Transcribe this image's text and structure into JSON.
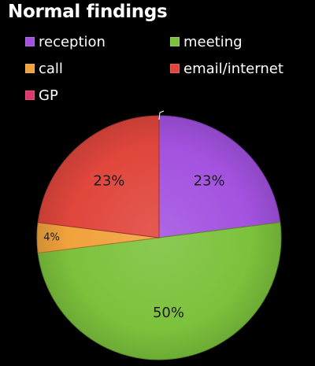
{
  "chart_data": {
    "type": "pie",
    "title": "Normal findings",
    "slices": [
      {
        "label": "reception",
        "value": 23,
        "value_label": "23%",
        "color": "#a352e0"
      },
      {
        "label": "meeting",
        "value": 50,
        "value_label": "50%",
        "color": "#7cc23c"
      },
      {
        "label": "call",
        "value": 4,
        "value_label": "4%",
        "color": "#f0a23c"
      },
      {
        "label": "email/internet",
        "value": 23,
        "value_label": "23%",
        "color": "#e0463c"
      }
    ],
    "legend": [
      {
        "label": "reception",
        "color": "#a352e0"
      },
      {
        "label": "meeting",
        "color": "#7cc23c"
      },
      {
        "label": "call",
        "color": "#f0a23c"
      },
      {
        "label": "email/internet",
        "color": "#e0463c"
      },
      {
        "label": "GP",
        "color": "#e0366e"
      }
    ],
    "legend_position": "top",
    "background": "#000000"
  }
}
